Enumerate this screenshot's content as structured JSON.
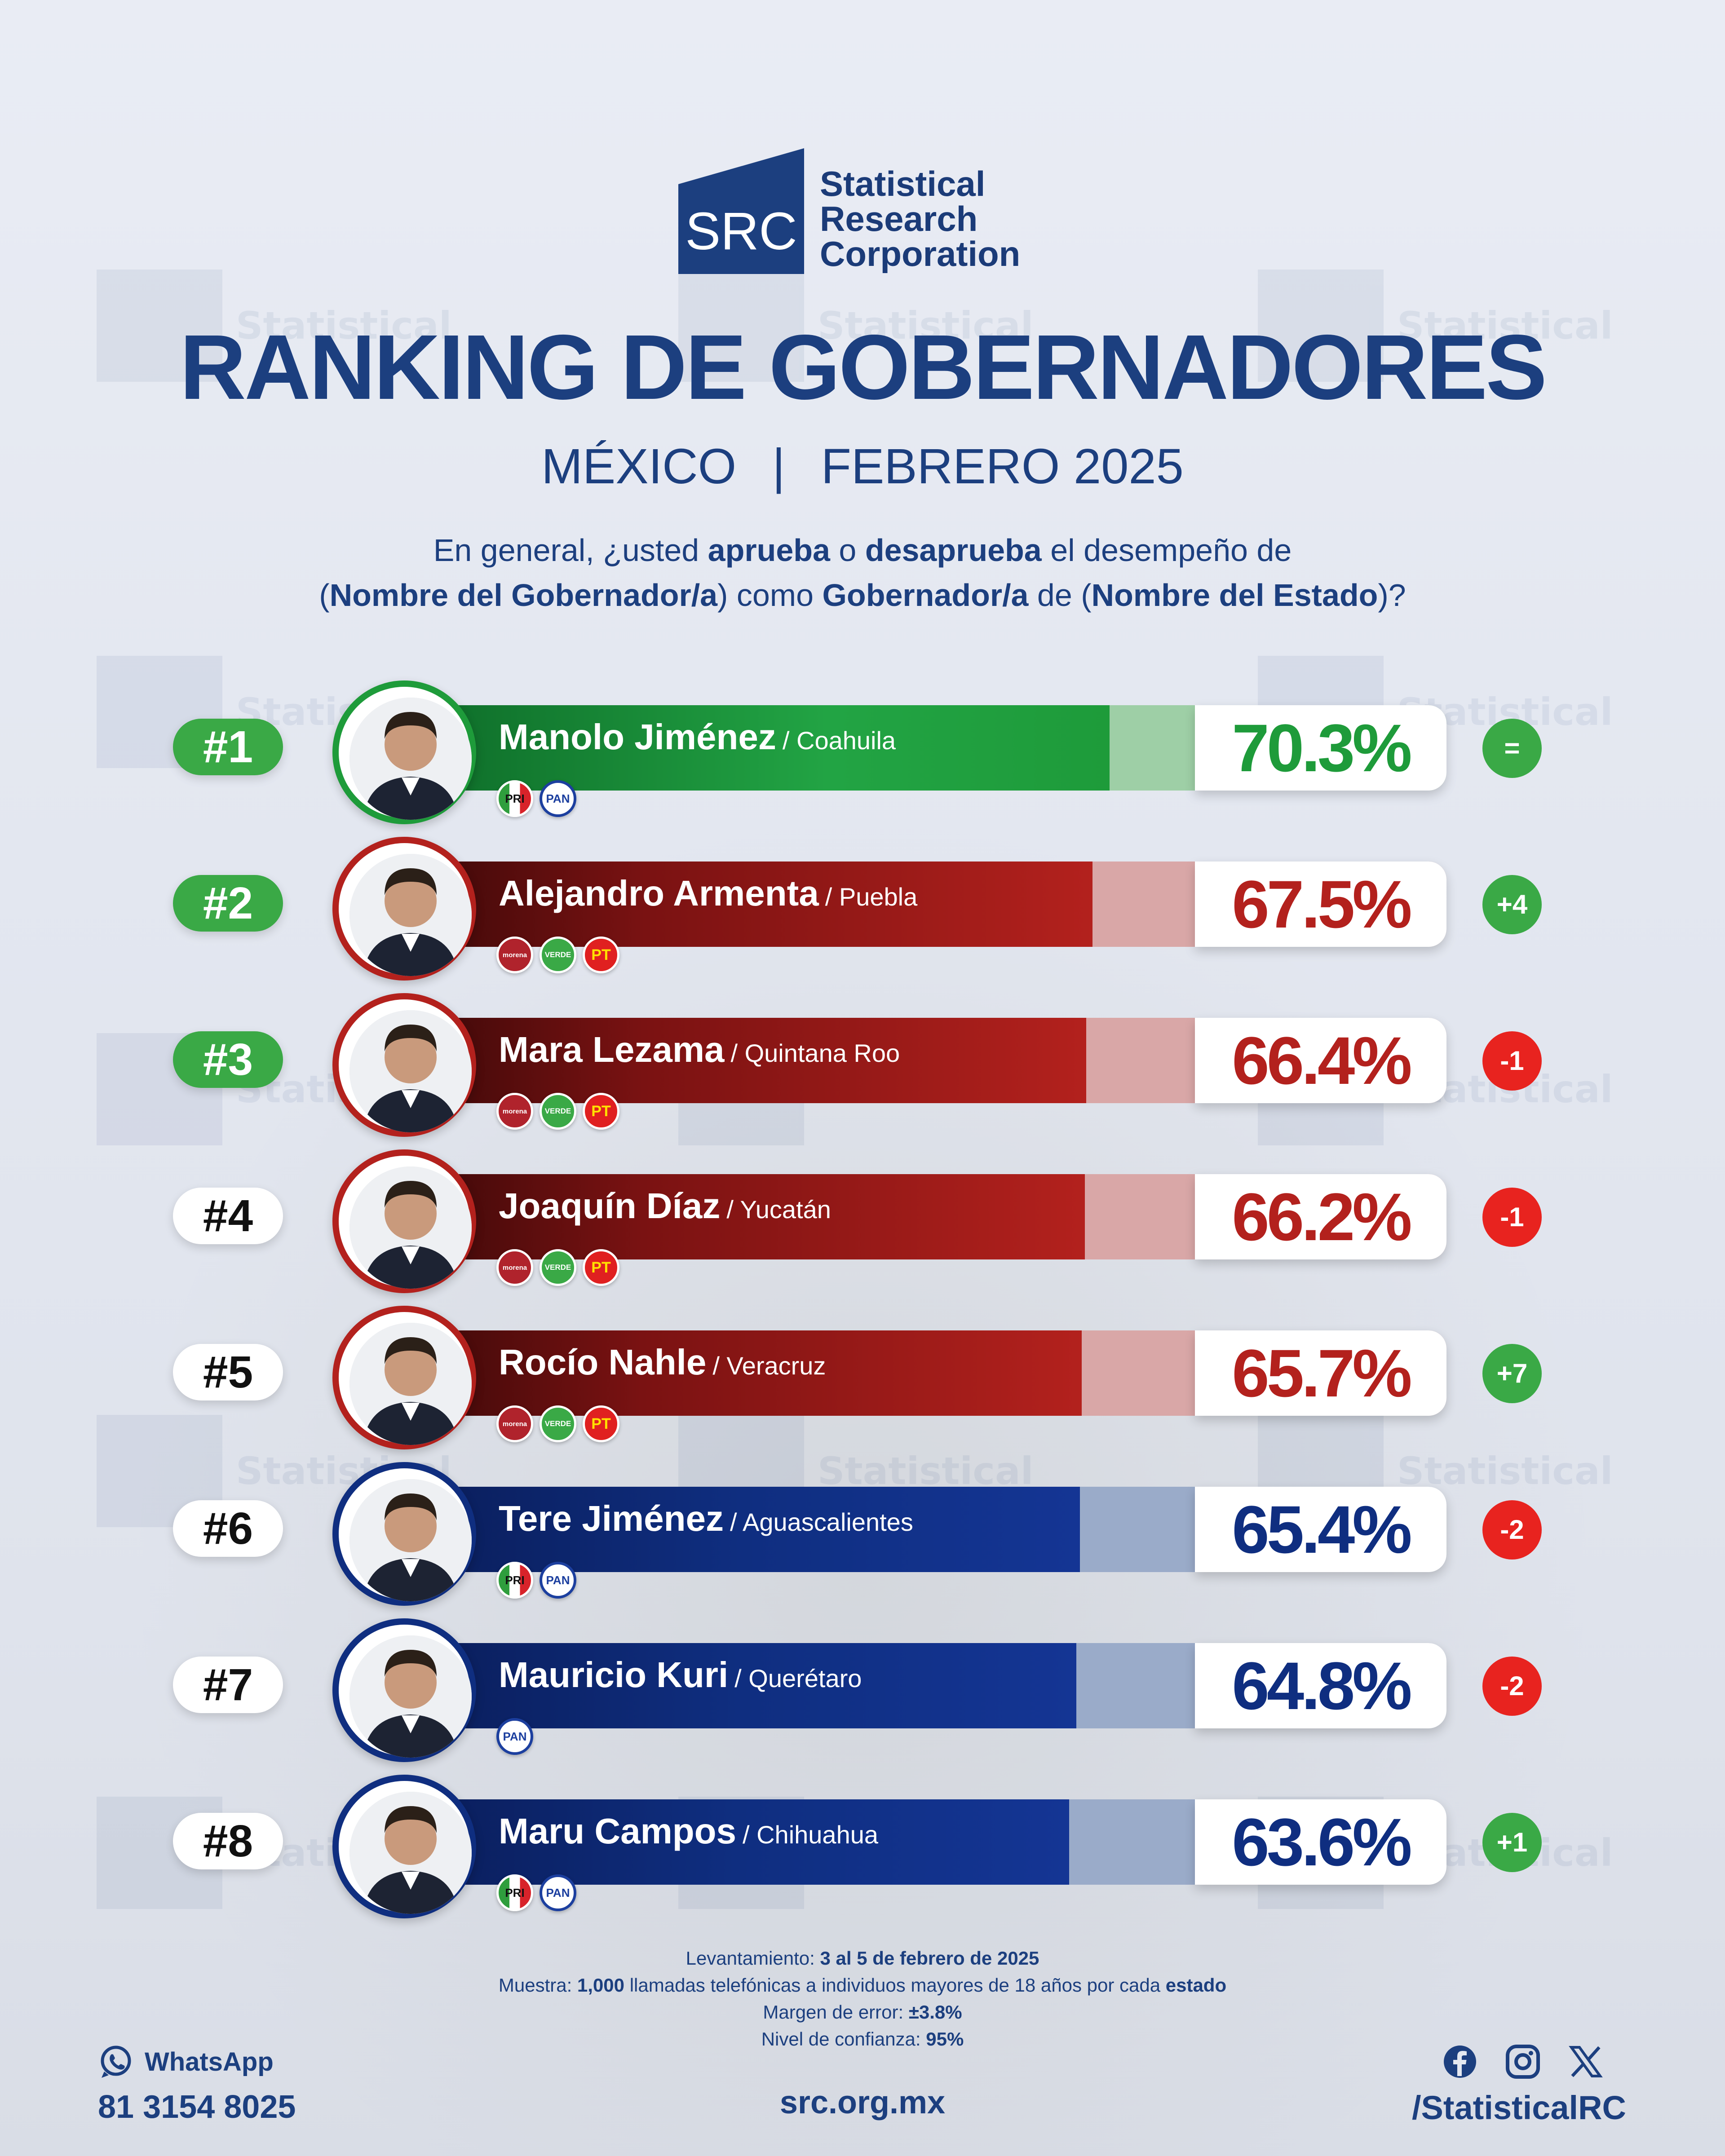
{
  "logo": {
    "abbr": "SRC",
    "line1": "Statistical",
    "line2": "Research",
    "line3": "Corporation"
  },
  "title": "RANKING DE GOBERNADORES",
  "subtitle": {
    "country": "MÉXICO",
    "separator": "|",
    "period": "FEBRERO 2025"
  },
  "question": {
    "p1": "En general, ¿usted ",
    "b1": "aprueba",
    "p2": " o ",
    "b2": "desaprueba",
    "p3": " el desempeño de",
    "p4": "(",
    "b3": "Nombre del Gobernador/a",
    "p5": ") como ",
    "b4": "Gobernador/a",
    "p6": " de (",
    "b5": "Nombre del Estado",
    "p7": ")?"
  },
  "colors": {
    "green": "#1e9b3a",
    "red": "#9e1a1a",
    "blue": "#0f2e80",
    "pos": "#3aa946",
    "neg": "#e8231f"
  },
  "rows": [
    {
      "rank": "#1",
      "name": "Manolo Jiménez",
      "state": "/ Coahuila",
      "pct": "70.3%",
      "value": 70.3,
      "change": "=",
      "party_color": "green",
      "change_type": "pos",
      "rank_green": true,
      "parties": [
        "PRI",
        "PAN"
      ]
    },
    {
      "rank": "#2",
      "name": "Alejandro Armenta",
      "state": "/ Puebla",
      "pct": "67.5%",
      "value": 67.5,
      "change": "+4",
      "party_color": "red",
      "change_type": "pos",
      "rank_green": true,
      "parties": [
        "morena",
        "VERDE",
        "PT"
      ]
    },
    {
      "rank": "#3",
      "name": "Mara Lezama",
      "state": "/ Quintana Roo",
      "pct": "66.4%",
      "value": 66.4,
      "change": "-1",
      "party_color": "red",
      "change_type": "neg",
      "rank_green": true,
      "parties": [
        "morena",
        "VERDE",
        "PT"
      ]
    },
    {
      "rank": "#4",
      "name": "Joaquín Díaz",
      "state": "/ Yucatán",
      "pct": "66.2%",
      "value": 66.2,
      "change": "-1",
      "party_color": "red",
      "change_type": "neg",
      "rank_green": false,
      "parties": [
        "morena",
        "VERDE",
        "PT"
      ]
    },
    {
      "rank": "#5",
      "name": "Rocío Nahle",
      "state": "/ Veracruz",
      "pct": "65.7%",
      "value": 65.7,
      "change": "+7",
      "party_color": "red",
      "change_type": "pos",
      "rank_green": false,
      "parties": [
        "morena",
        "VERDE",
        "PT"
      ]
    },
    {
      "rank": "#6",
      "name": "Tere Jiménez",
      "state": "/ Aguascalientes",
      "pct": "65.4%",
      "value": 65.4,
      "change": "-2",
      "party_color": "blue",
      "change_type": "neg",
      "rank_green": false,
      "parties": [
        "PRI",
        "PAN"
      ]
    },
    {
      "rank": "#7",
      "name": "Mauricio Kuri",
      "state": "/ Querétaro",
      "pct": "64.8%",
      "value": 64.8,
      "change": "-2",
      "party_color": "blue",
      "change_type": "neg",
      "rank_green": false,
      "parties": [
        "PAN"
      ]
    },
    {
      "rank": "#8",
      "name": "Maru Campos",
      "state": "/ Chihuahua",
      "pct": "63.6%",
      "value": 63.6,
      "change": "+1",
      "party_color": "blue",
      "change_type": "pos",
      "rank_green": false,
      "parties": [
        "PRI",
        "PAN"
      ]
    }
  ],
  "methodology": {
    "l1_label": "Levantamiento: ",
    "l1_value": "3 al 5 de febrero de 2025",
    "l2_label": "Muestra: ",
    "l2_value": "1,000",
    "l2_mid": " llamadas telefónicas a individuos mayores de 18 años por cada ",
    "l2_end": "estado",
    "l3_label": "Margen de error: ",
    "l3_value": "±3.8%",
    "l4_label": "Nivel de confianza: ",
    "l4_value": "95%"
  },
  "footer": {
    "whatsapp_label": "WhatsApp",
    "phone": "81 3154 8025",
    "website": "src.org.mx",
    "handle": "/StatisticalRC",
    "icons": [
      "whatsapp-icon",
      "facebook-icon",
      "instagram-icon",
      "x-icon"
    ]
  }
}
